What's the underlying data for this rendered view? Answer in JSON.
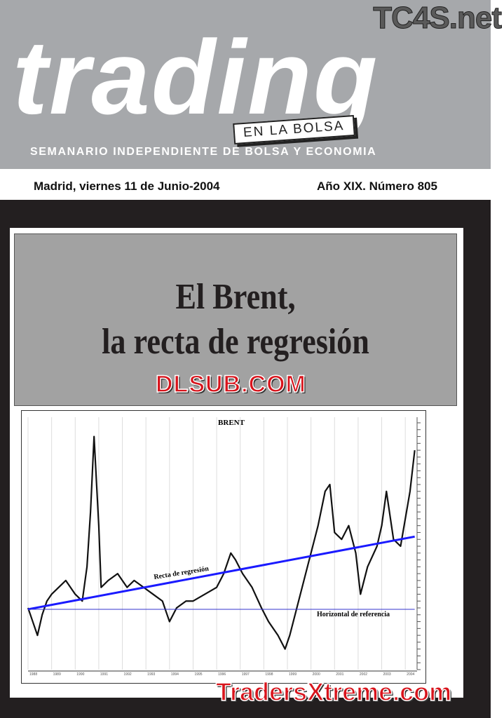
{
  "masthead": {
    "logo": "trading",
    "tag": "EN LA BOLSA",
    "subtitle": "SEMANARIO INDEPENDIENTE DE BOLSA Y ECONOMIA",
    "watermark_top": "TC4S.net"
  },
  "issue": {
    "date": "Madrid, viernes 11 de Junio-2004",
    "number": "Año XIX. Número 805"
  },
  "headline": {
    "line1": "El Brent,",
    "line2": "la recta de regresión"
  },
  "watermarks": {
    "middle": "DLSUB.COM",
    "bottom": "TradersXtreme.com"
  },
  "colors": {
    "regression": "#1a1aff",
    "horizontal": "#3333cc",
    "price": "#111111",
    "header_gray": "#a6a8ab"
  },
  "chart_data": {
    "type": "line",
    "title": "BRENT",
    "ylim": [
      7,
      43
    ],
    "xlim": [
      1988,
      2004.5
    ],
    "grid": "vertical",
    "yticks": [
      43,
      42,
      41,
      40,
      39,
      38,
      37,
      36,
      35,
      34,
      33,
      32,
      31,
      30,
      29,
      28,
      27,
      26,
      25,
      24,
      23,
      22,
      21,
      20,
      19,
      18,
      17,
      16,
      15,
      14,
      13,
      12,
      11,
      10,
      9,
      8,
      7
    ],
    "xticks": [
      "1988",
      "1989",
      "1990",
      "1991",
      "1992",
      "1993",
      "1994",
      "1995",
      "1996",
      "1997",
      "1998",
      "1999",
      "2000",
      "2001",
      "2002",
      "2003",
      "2004"
    ],
    "series": [
      {
        "x": [
          1988,
          1988.2,
          1988.4,
          1988.6,
          1988.8,
          1989,
          1989.3,
          1989.6,
          1990,
          1990.3,
          1990.5,
          1990.65,
          1990.8,
          1991,
          1991.1,
          1991.4,
          1991.8,
          1992.2,
          1992.5,
          1992.9,
          1993.3,
          1993.7,
          1994,
          1994.3,
          1994.7,
          1995,
          1995.5,
          1996,
          1996.3,
          1996.6,
          1996.8,
          1997.1,
          1997.5,
          1997.9,
          1998.2,
          1998.6,
          1998.9,
          1999.1,
          1999.4,
          1999.7,
          2000,
          2000.3,
          2000.6,
          2000.8,
          2001,
          2001.3,
          2001.6,
          2001.9,
          2002.1,
          2002.4,
          2002.8,
          2003,
          2003.2,
          2003.5,
          2003.8,
          2004,
          2004.2,
          2004.4
        ],
        "y": [
          16,
          14,
          12,
          15,
          17,
          18,
          19,
          20,
          18,
          17,
          22,
          30,
          41,
          28,
          19,
          20,
          21,
          19,
          20,
          19,
          18,
          17,
          14,
          16,
          17,
          17,
          18,
          19,
          21,
          24,
          23,
          21,
          19,
          16,
          14,
          12,
          10,
          12,
          16,
          20,
          24,
          28,
          33,
          34,
          27,
          26,
          28,
          24,
          18,
          22,
          25,
          28,
          33,
          26,
          25,
          29,
          33,
          39
        ]
      }
    ],
    "annotations": [
      {
        "text": "Recta de regresión",
        "line": {
          "from": [
            1988,
            15.8
          ],
          "to": [
            2004.4,
            26.4
          ]
        }
      },
      {
        "text": "Horizontal de referencia",
        "line": {
          "from": [
            1988,
            15.8
          ],
          "to": [
            2004.4,
            15.8
          ]
        }
      }
    ]
  }
}
